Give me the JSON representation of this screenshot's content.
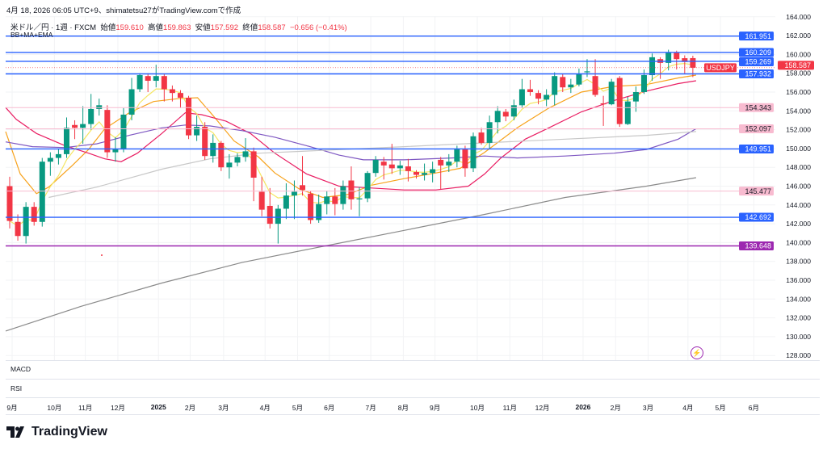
{
  "caption": "4月 18, 2026 06:05 UTC+9、shimatetsu27がTradingView.comで作成",
  "legend": {
    "symbol_desc": "米ドル／円 · 1週 · FXCM",
    "open_label": "始値",
    "open": "159.610",
    "high_label": "高値",
    "high": "159.863",
    "low_label": "安値",
    "low": "157.592",
    "close_label": "終値",
    "close": "158.587",
    "change": "−0.656 (−0.41%)",
    "indicators": "BB+MA+EMA"
  },
  "panes": {
    "macd": "MACD",
    "rsi": "RSI"
  },
  "symbol_tag": "USDJPY",
  "current_price": "158.587",
  "colors": {
    "up": "#089981",
    "down": "#f23645",
    "blue_line": "#2962ff",
    "pink_line": "#f8bbd0",
    "purple_line": "#9c27b0"
  },
  "price_axis": {
    "min": 128,
    "max": 164,
    "step": 2,
    "labels": [
      "164.000",
      "162.000",
      "160.000",
      "158.000",
      "156.000",
      "154.000",
      "152.000",
      "150.000",
      "148.000",
      "146.000",
      "144.000",
      "142.000",
      "140.000",
      "138.000",
      "136.000",
      "134.000",
      "132.000",
      "130.000",
      "128.000"
    ]
  },
  "levels": [
    {
      "value": 161.951,
      "label": "161.951",
      "kind": "blue"
    },
    {
      "value": 160.209,
      "label": "160.209",
      "kind": "blue"
    },
    {
      "value": 159.269,
      "label": "159.269",
      "kind": "blue"
    },
    {
      "value": 157.932,
      "label": "157.932",
      "kind": "blue"
    },
    {
      "value": 154.343,
      "label": "154.343",
      "kind": "pink"
    },
    {
      "value": 152.097,
      "label": "152.097",
      "kind": "pink"
    },
    {
      "value": 149.951,
      "label": "149.951",
      "kind": "blue"
    },
    {
      "value": 145.477,
      "label": "145.477",
      "kind": "pink"
    },
    {
      "value": 142.692,
      "label": "142.692",
      "kind": "blue"
    },
    {
      "value": 139.648,
      "label": "139.648",
      "kind": "purple"
    }
  ],
  "time_axis": [
    {
      "label": "9月",
      "w": 0.3
    },
    {
      "label": "10月",
      "w": 5.5
    },
    {
      "label": "11月",
      "w": 9.3
    },
    {
      "label": "12月",
      "w": 13.3
    },
    {
      "label": "2025",
      "w": 18.3,
      "bold": true
    },
    {
      "label": "2月",
      "w": 22.2
    },
    {
      "label": "3月",
      "w": 26.3
    },
    {
      "label": "4月",
      "w": 31.4
    },
    {
      "label": "5月",
      "w": 35.4
    },
    {
      "label": "6月",
      "w": 39.3
    },
    {
      "label": "7月",
      "w": 44.4
    },
    {
      "label": "8月",
      "w": 48.4
    },
    {
      "label": "9月",
      "w": 52.3
    },
    {
      "label": "10月",
      "w": 57.5
    },
    {
      "label": "11月",
      "w": 61.5
    },
    {
      "label": "12月",
      "w": 65.5
    },
    {
      "label": "2026",
      "w": 70.5,
      "bold": true
    },
    {
      "label": "2月",
      "w": 74.5
    },
    {
      "label": "3月",
      "w": 78.5
    },
    {
      "label": "4月",
      "w": 83.4
    },
    {
      "label": "5月",
      "w": 87.4
    },
    {
      "label": "6月",
      "w": 91.5
    }
  ],
  "candles_ohlc": [
    [
      146,
      142.3,
      147,
      141.5
    ],
    [
      142.2,
      140.7,
      143,
      140.2
    ],
    [
      140.7,
      143.8,
      144.3,
      139.9
    ],
    [
      143.8,
      142.2,
      144.3,
      141.8
    ],
    [
      142.2,
      148.6,
      149,
      141.7
    ],
    [
      148.6,
      149.0,
      149.6,
      147.1
    ],
    [
      149.0,
      149.4,
      150,
      148.3
    ],
    [
      149.4,
      152.2,
      153.3,
      149
    ],
    [
      152.5,
      152.2,
      153,
      151
    ],
    [
      152.2,
      152.6,
      154.5,
      150.5
    ],
    [
      152.6,
      154.2,
      155.8,
      152
    ],
    [
      154.2,
      154.6,
      155.3,
      153.5
    ],
    [
      154.1,
      149.6,
      154.6,
      149
    ],
    [
      149.6,
      149.9,
      151.2,
      148.6
    ],
    [
      149.9,
      153.6,
      154.3,
      149.6
    ],
    [
      153.6,
      156.3,
      157.5,
      153
    ],
    [
      156.3,
      157.8,
      158,
      156
    ],
    [
      157.7,
      157.2,
      158,
      156
    ],
    [
      157.2,
      157.7,
      158.9,
      156.5
    ],
    [
      157.7,
      156.3,
      157.9,
      155
    ],
    [
      156.3,
      155.9,
      156.7,
      155
    ],
    [
      155.9,
      155.4,
      156.2,
      154.3
    ],
    [
      155.4,
      151.4,
      155.6,
      151
    ],
    [
      151.4,
      152.3,
      153.5,
      150.8
    ],
    [
      152.3,
      149.2,
      152.8,
      148.8
    ],
    [
      149.2,
      150.6,
      151.5,
      148.5
    ],
    [
      150.6,
      148.0,
      150.8,
      147.6
    ],
    [
      148.0,
      148.5,
      149.4,
      146.8
    ],
    [
      148.5,
      149.1,
      149.5,
      148.1
    ],
    [
      149.1,
      149.7,
      151.1,
      148.6
    ],
    [
      149.7,
      146.9,
      150.1,
      144.4
    ],
    [
      145.4,
      143.5,
      147,
      142.8
    ],
    [
      143.9,
      142.0,
      145.8,
      141.5
    ],
    [
      142.0,
      143.6,
      144,
      139.9
    ],
    [
      143.6,
      145.0,
      146.3,
      142.5
    ],
    [
      145.0,
      145.4,
      146.6,
      142.5
    ],
    [
      146.1,
      145.6,
      149.2,
      145
    ],
    [
      145.2,
      142.4,
      145.5,
      142.0
    ],
    [
      142.4,
      144.1,
      145.1,
      142.1
    ],
    [
      144.1,
      144.9,
      145.5,
      143
    ],
    [
      144.9,
      144.1,
      145.8,
      142.9
    ],
    [
      144.1,
      146.0,
      146.6,
      143.5
    ],
    [
      146.6,
      144.6,
      148.1,
      143.5
    ],
    [
      144.6,
      144.7,
      145.9,
      142.8
    ],
    [
      144.7,
      147.4,
      147.6,
      144.3
    ],
    [
      147.4,
      148.8,
      149.2,
      147
    ],
    [
      148.6,
      148.2,
      149.1,
      146.7
    ],
    [
      148.3,
      147.9,
      150.5,
      147.3
    ],
    [
      147.9,
      148.2,
      148.7,
      147.2
    ],
    [
      148.1,
      147.6,
      148.9,
      146.5
    ],
    [
      147.5,
      147.2,
      147.7,
      146.8
    ],
    [
      147.2,
      147.4,
      148.4,
      146.6
    ],
    [
      147.4,
      147.8,
      148.6,
      146.4
    ],
    [
      148.8,
      148.2,
      149.1,
      145.7
    ],
    [
      148.2,
      148.6,
      149.4,
      147.5
    ],
    [
      148.6,
      150.0,
      150.3,
      148
    ],
    [
      149.9,
      147.9,
      150.3,
      147.0
    ],
    [
      147.9,
      151.3,
      151.7,
      147.5
    ],
    [
      151.7,
      150.6,
      152.2,
      150.4
    ],
    [
      150.6,
      152.8,
      153.5,
      150
    ],
    [
      152.8,
      154.0,
      154.5,
      151.6
    ],
    [
      153.9,
      153.4,
      154.2,
      152.9
    ],
    [
      153.4,
      154.6,
      155.2,
      153
    ],
    [
      154.6,
      156.3,
      157.4,
      154.3
    ],
    [
      156.3,
      156.0,
      157.3,
      155.6
    ],
    [
      155.9,
      155.3,
      156.2,
      154.7
    ],
    [
      155.2,
      155.7,
      156.3,
      154.5
    ],
    [
      155.7,
      157.7,
      158.1,
      154.6
    ],
    [
      157.6,
      156.5,
      157.9,
      156
    ],
    [
      156.5,
      156.8,
      157.4,
      155.9
    ],
    [
      156.8,
      157.9,
      158.5,
      156.6
    ],
    [
      158.1,
      158.2,
      159.5,
      157.6
    ],
    [
      157.7,
      155.7,
      159.5,
      155.5
    ],
    [
      154.8,
      154.7,
      155.6,
      152.4
    ],
    [
      154.7,
      157.1,
      157.4,
      154.6
    ],
    [
      157.5,
      152.6,
      157.7,
      152.3
    ],
    [
      152.6,
      155.0,
      155.5,
      152.5
    ],
    [
      155.0,
      156.0,
      156.6,
      153.9
    ],
    [
      156.0,
      157.8,
      158.4,
      155.8
    ],
    [
      157.8,
      159.7,
      160.1,
      157.2
    ],
    [
      159.5,
      159.1,
      159.7,
      157.4
    ],
    [
      159.1,
      160.2,
      160.5,
      158.3
    ],
    [
      160.2,
      159.5,
      160.4,
      158.4
    ],
    [
      159.6,
      159.2,
      159.9,
      157.9
    ],
    [
      159.61,
      158.587,
      159.863,
      157.592
    ]
  ],
  "indicator_lines": [
    {
      "name": "orange",
      "color": "#f7a21b",
      "points": [
        [
          -0.5,
          151.8
        ],
        [
          1.3,
          147.3
        ],
        [
          3.3,
          145.2
        ],
        [
          4.8,
          145.9
        ],
        [
          7.7,
          148.2
        ],
        [
          9.7,
          149.9
        ],
        [
          11.7,
          152.1
        ],
        [
          14.7,
          153.8
        ],
        [
          17.7,
          155.0
        ],
        [
          20.7,
          155.3
        ],
        [
          23.1,
          155.4
        ],
        [
          25.1,
          153.4
        ],
        [
          27.6,
          150.8
        ],
        [
          30.6,
          149.1
        ],
        [
          32.6,
          147.4
        ],
        [
          35.6,
          145.7
        ],
        [
          38.5,
          144.8
        ],
        [
          41.5,
          145.1
        ],
        [
          44.5,
          146.1
        ],
        [
          48.5,
          146.8
        ],
        [
          52.4,
          147.4
        ],
        [
          55.4,
          147.9
        ],
        [
          58.4,
          149.6
        ],
        [
          62.4,
          152.2
        ],
        [
          66.3,
          154.3
        ],
        [
          70.3,
          156.0
        ],
        [
          74.3,
          156.6
        ],
        [
          78.3,
          156.8
        ],
        [
          82.2,
          157.5
        ],
        [
          84.4,
          157.8
        ]
      ]
    },
    {
      "name": "pink",
      "color": "#e91e63",
      "points": [
        [
          -0.5,
          154.35
        ],
        [
          0.8,
          153.1
        ],
        [
          3.3,
          151.6
        ],
        [
          6.8,
          150.3
        ],
        [
          9.7,
          149.5
        ],
        [
          11.7,
          148.9
        ],
        [
          13.7,
          148.6
        ],
        [
          15.7,
          149.5
        ],
        [
          18.7,
          151.6
        ],
        [
          21.6,
          153.8
        ],
        [
          23.6,
          153.6
        ],
        [
          26.6,
          152.9
        ],
        [
          29.6,
          151.6
        ],
        [
          32.6,
          149.5
        ],
        [
          36.5,
          147.3
        ],
        [
          40.5,
          146.0
        ],
        [
          44.5,
          145.8
        ],
        [
          48.5,
          145.6
        ],
        [
          52.4,
          145.6
        ],
        [
          56.4,
          146.0
        ],
        [
          58.4,
          147.3
        ],
        [
          60.4,
          149.0
        ],
        [
          63.4,
          151.0
        ],
        [
          66.3,
          152.2
        ],
        [
          70.3,
          153.9
        ],
        [
          74.3,
          155.1
        ],
        [
          78.3,
          156.1
        ],
        [
          82.2,
          156.9
        ],
        [
          84.4,
          157.2
        ]
      ]
    },
    {
      "name": "purple",
      "color": "#7e57c2",
      "points": [
        [
          -0.5,
          150.7
        ],
        [
          2.8,
          150.2
        ],
        [
          6.8,
          150.1
        ],
        [
          10.7,
          150.5
        ],
        [
          14.7,
          151.4
        ],
        [
          18.7,
          152.2
        ],
        [
          21.6,
          152.5
        ],
        [
          24.6,
          152.4
        ],
        [
          28.6,
          151.9
        ],
        [
          32.6,
          151.2
        ],
        [
          36.5,
          150.3
        ],
        [
          40.5,
          149.3
        ],
        [
          43.5,
          148.8
        ],
        [
          48.5,
          148.8
        ],
        [
          54.4,
          149.0
        ],
        [
          58.4,
          149.2
        ],
        [
          62.4,
          149.0
        ],
        [
          68.3,
          149.2
        ],
        [
          74.3,
          149.5
        ],
        [
          78.3,
          149.9
        ],
        [
          82.2,
          151.0
        ],
        [
          84.4,
          152.1
        ]
      ]
    },
    {
      "name": "lightgray",
      "color": "#c8c8c8",
      "points": [
        [
          4.8,
          144.8
        ],
        [
          10.7,
          145.9
        ],
        [
          18.7,
          147.8
        ],
        [
          24.6,
          148.9
        ],
        [
          30.6,
          149.5
        ],
        [
          38.5,
          149.8
        ],
        [
          48.5,
          150.2
        ],
        [
          58.4,
          150.6
        ],
        [
          68.3,
          151.0
        ],
        [
          78.3,
          151.4
        ],
        [
          84.4,
          151.8
        ]
      ]
    },
    {
      "name": "darkgray",
      "color": "#8a8a8a",
      "points": [
        [
          -0.5,
          130.6
        ],
        [
          8.7,
          133.2
        ],
        [
          18.7,
          135.7
        ],
        [
          28.6,
          137.9
        ],
        [
          38.5,
          139.6
        ],
        [
          48.5,
          141.3
        ],
        [
          58.4,
          143.0
        ],
        [
          68.3,
          144.8
        ],
        [
          78.3,
          146.0
        ],
        [
          84.4,
          146.9
        ]
      ]
    }
  ],
  "fast_ema_period": 5,
  "brand": "TradingView"
}
